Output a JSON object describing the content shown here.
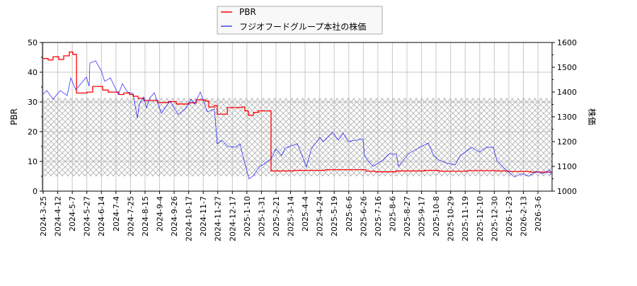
{
  "chart_data": {
    "type": "line",
    "title": "",
    "legend": {
      "placement": "top-center",
      "entries": [
        "PBR",
        "フジオフードグループ本社の株価"
      ]
    },
    "ylabel_left": "PBR",
    "ylabel_right": "株価",
    "ylim_left": [
      0,
      50
    ],
    "ylim_right": [
      1000,
      1600
    ],
    "yticks_left": [
      0,
      10,
      20,
      30,
      40,
      50
    ],
    "yticks_right": [
      1000,
      1100,
      1200,
      1300,
      1400,
      1500,
      1600
    ],
    "grid": true,
    "hatched_band_pbr": [
      5,
      31.3
    ],
    "x_tick_labels": [
      "2024-3-25",
      "2024-4-12",
      "2024-5-7",
      "2024-5-27",
      "2024-6-14",
      "2024-7-4",
      "2024-7-25",
      "2024-8-15",
      "2024-9-4",
      "2024-9-26",
      "2024-10-17",
      "2024-11-7",
      "2024-11-27",
      "2024-12-17",
      "2025-1-10",
      "2025-1-31",
      "2025-2-21",
      "2025-3-14",
      "2025-4-4",
      "2025-4-24",
      "2025-5-19",
      "2025-6-6",
      "2025-6-26",
      "2025-7-16",
      "2025-8-6",
      "2025-8-27",
      "2025-9-17",
      "2025-10-8",
      "2025-10-29",
      "2025-11-19",
      "2025-12-10",
      "2025-12-30",
      "2026-1-23",
      "2026-2-13",
      "2026-3-6"
    ],
    "x_end_tick_index": 34.97,
    "colors": {
      "pbr": "#ff0000",
      "price": "#0000ff",
      "grid": "#c8c8c8",
      "hatch": "#b0b0b0"
    },
    "series": [
      {
        "name": "PBR",
        "axis": "left",
        "step": true,
        "points": [
          [
            0,
            44.6
          ],
          [
            0.34,
            44.1
          ],
          [
            0.68,
            45.2
          ],
          [
            1.07,
            44.3
          ],
          [
            1.41,
            45.5
          ],
          [
            1.8,
            46.8
          ],
          [
            2.04,
            46
          ],
          [
            2.29,
            33
          ],
          [
            3.02,
            33.3
          ],
          [
            3.4,
            35.2
          ],
          [
            4.09,
            34
          ],
          [
            4.47,
            33.3
          ],
          [
            5.2,
            32.5
          ],
          [
            5.54,
            33
          ],
          [
            5.93,
            32.5
          ],
          [
            6.18,
            31.9
          ],
          [
            6.52,
            31.2
          ],
          [
            6.91,
            30.5
          ],
          [
            7.88,
            29.8
          ],
          [
            8.61,
            30.1
          ],
          [
            9.14,
            29.3
          ],
          [
            10.02,
            29.7
          ],
          [
            10.51,
            30.7
          ],
          [
            11.14,
            30.3
          ],
          [
            11.38,
            28.3
          ],
          [
            11.77,
            28.8
          ],
          [
            11.96,
            25.9
          ],
          [
            12.65,
            28.1
          ],
          [
            13.62,
            28.3
          ],
          [
            13.86,
            27
          ],
          [
            14.1,
            25.5
          ],
          [
            14.45,
            26.5
          ],
          [
            14.79,
            27
          ],
          [
            15.66,
            6.8
          ],
          [
            17.22,
            7.0
          ],
          [
            19.41,
            7.2
          ],
          [
            22.18,
            6.7
          ],
          [
            22.81,
            6.5
          ],
          [
            24.27,
            6.8
          ],
          [
            26.22,
            7.0
          ],
          [
            27.19,
            6.7
          ],
          [
            29.13,
            6.9
          ],
          [
            31.08,
            6.8
          ],
          [
            31.91,
            6.6
          ],
          [
            33.51,
            6.4
          ],
          [
            34.97,
            6.4
          ]
        ]
      },
      {
        "name": "フジオフードグループ本社の株価",
        "axis": "right",
        "step": false,
        "points": [
          [
            0,
            1391
          ],
          [
            0.24,
            1406
          ],
          [
            0.68,
            1371
          ],
          [
            1.17,
            1406
          ],
          [
            1.65,
            1386
          ],
          [
            1.9,
            1457
          ],
          [
            2.24,
            1409
          ],
          [
            2.97,
            1460
          ],
          [
            3.16,
            1423
          ],
          [
            3.21,
            1517
          ],
          [
            3.6,
            1526
          ],
          [
            3.99,
            1486
          ],
          [
            4.23,
            1443
          ],
          [
            4.62,
            1457
          ],
          [
            5.16,
            1391
          ],
          [
            5.45,
            1434
          ],
          [
            5.79,
            1400
          ],
          [
            6.18,
            1394
          ],
          [
            6.47,
            1294
          ],
          [
            6.61,
            1351
          ],
          [
            6.91,
            1380
          ],
          [
            7.1,
            1337
          ],
          [
            7.34,
            1377
          ],
          [
            7.64,
            1397
          ],
          [
            8.12,
            1314
          ],
          [
            8.71,
            1363
          ],
          [
            9.29,
            1309
          ],
          [
            9.78,
            1334
          ],
          [
            10.17,
            1371
          ],
          [
            10.41,
            1351
          ],
          [
            10.8,
            1400
          ],
          [
            11.28,
            1320
          ],
          [
            11.77,
            1331
          ],
          [
            11.96,
            1191
          ],
          [
            12.26,
            1206
          ],
          [
            12.69,
            1180
          ],
          [
            13.23,
            1177
          ],
          [
            13.52,
            1191
          ],
          [
            13.81,
            1123
          ],
          [
            14.15,
            1049
          ],
          [
            14.45,
            1063
          ],
          [
            14.88,
            1100
          ],
          [
            15.18,
            1109
          ],
          [
            15.66,
            1131
          ],
          [
            16.0,
            1171
          ],
          [
            16.39,
            1143
          ],
          [
            16.63,
            1174
          ],
          [
            17.46,
            1191
          ],
          [
            17.8,
            1143
          ],
          [
            18.09,
            1097
          ],
          [
            18.43,
            1171
          ],
          [
            19.02,
            1217
          ],
          [
            19.26,
            1200
          ],
          [
            19.89,
            1237
          ],
          [
            20.28,
            1206
          ],
          [
            20.62,
            1234
          ],
          [
            20.96,
            1200
          ],
          [
            21.98,
            1211
          ],
          [
            22.08,
            1143
          ],
          [
            22.32,
            1123
          ],
          [
            22.67,
            1100
          ],
          [
            23.3,
            1123
          ],
          [
            23.78,
            1151
          ],
          [
            24.27,
            1149
          ],
          [
            24.42,
            1100
          ],
          [
            25.1,
            1151
          ],
          [
            25.88,
            1177
          ],
          [
            26.46,
            1194
          ],
          [
            26.85,
            1143
          ],
          [
            27.19,
            1126
          ],
          [
            27.68,
            1114
          ],
          [
            28.31,
            1106
          ],
          [
            28.65,
            1143
          ],
          [
            29.47,
            1177
          ],
          [
            29.96,
            1157
          ],
          [
            30.45,
            1177
          ],
          [
            30.93,
            1177
          ],
          [
            31.18,
            1123
          ],
          [
            31.71,
            1091
          ],
          [
            32.39,
            1057
          ],
          [
            32.88,
            1071
          ],
          [
            33.37,
            1060
          ],
          [
            33.85,
            1080
          ],
          [
            34.34,
            1071
          ],
          [
            34.82,
            1086
          ],
          [
            34.87,
            1066
          ]
        ]
      }
    ]
  }
}
